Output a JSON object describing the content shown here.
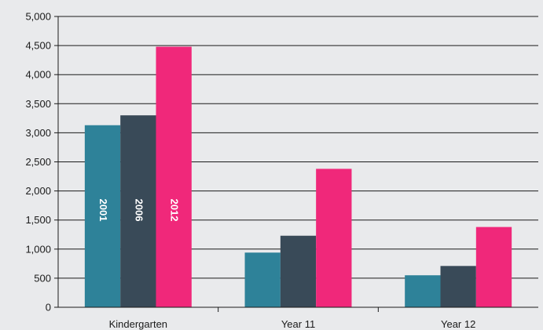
{
  "chart_data": {
    "type": "bar",
    "title": "",
    "xlabel": "",
    "ylabel": "",
    "ylim": [
      0,
      5000
    ],
    "yticks": [
      0,
      500,
      1000,
      1500,
      2000,
      2500,
      3000,
      3500,
      4000,
      4500,
      5000
    ],
    "ytick_labels": [
      "0",
      "500",
      "1,000",
      "1,500",
      "2,000",
      "2,500",
      "3,000",
      "3,500",
      "4,000",
      "4,500",
      "5,000"
    ],
    "grid": true,
    "legend": "none",
    "categories": [
      "Kindergarten",
      "Year 11",
      "Year 12"
    ],
    "series": [
      {
        "name": "2001",
        "color": "#2e8299",
        "values": [
          3130,
          940,
          550
        ]
      },
      {
        "name": "2006",
        "color": "#394a58",
        "values": [
          3300,
          1230,
          710
        ]
      },
      {
        "name": "2012",
        "color": "#f0287a",
        "values": [
          4480,
          2380,
          1380
        ]
      }
    ],
    "bar_labels_category": "Kindergarten"
  }
}
